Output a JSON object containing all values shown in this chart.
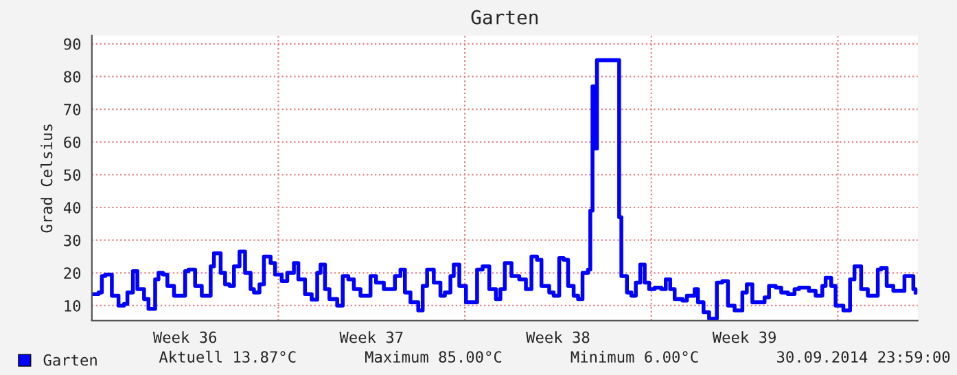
{
  "chart_data": {
    "type": "step",
    "title": "Garten",
    "ylabel": "Grad Celsius",
    "x": [
      "2014-08-31T00:00",
      "2014-08-31T06:00",
      "2014-08-31T09:00",
      "2014-08-31T12:00",
      "2014-08-31T18:00",
      "2014-09-01T00:00",
      "2014-09-01T05:00",
      "2014-09-01T08:00",
      "2014-09-01T13:00",
      "2014-09-01T17:00",
      "2014-09-01T23:00",
      "2014-09-02T03:00",
      "2014-09-02T09:00",
      "2014-09-02T12:00",
      "2014-09-02T16:00",
      "2014-09-02T20:00",
      "2014-09-03T02:00",
      "2014-09-03T06:00",
      "2014-09-03T12:00",
      "2014-09-03T15:00",
      "2014-09-03T21:00",
      "2014-09-04T03:00",
      "2014-09-04T06:00",
      "2014-09-04T11:00",
      "2014-09-04T14:00",
      "2014-09-04T20:00",
      "2014-09-05T00:00",
      "2014-09-05T04:00",
      "2014-09-05T08:00",
      "2014-09-05T13:00",
      "2014-09-05T18:00",
      "2014-09-05T23:00",
      "2014-09-06T02:00",
      "2014-09-06T07:00",
      "2014-09-06T11:00",
      "2014-09-06T17:00",
      "2014-09-06T21:00",
      "2014-09-07T03:00",
      "2014-09-07T08:00",
      "2014-09-07T14:00",
      "2014-09-07T18:00",
      "2014-09-08T00:00",
      "2014-09-08T06:00",
      "2014-09-08T11:00",
      "2014-09-08T14:00",
      "2014-09-08T18:00",
      "2014-09-08T22:00",
      "2014-09-09T05:00",
      "2014-09-09T10:00",
      "2014-09-09T15:00",
      "2014-09-09T20:00",
      "2014-09-10T02:00",
      "2014-09-10T07:00",
      "2014-09-10T11:00",
      "2014-09-10T16:00",
      "2014-09-10T23:00",
      "2014-09-11T05:00",
      "2014-09-11T09:00",
      "2014-09-11T14:00",
      "2014-09-11T18:00",
      "2014-09-11T23:00",
      "2014-09-12T06:00",
      "2014-09-12T10:00",
      "2014-09-12T14:00",
      "2014-09-12T20:00",
      "2014-09-13T02:00",
      "2014-09-13T06:00",
      "2014-09-13T11:00",
      "2014-09-13T14:00",
      "2014-09-13T19:00",
      "2014-09-14T01:00",
      "2014-09-14T05:00",
      "2014-09-14T11:00",
      "2014-09-14T16:00",
      "2014-09-14T22:00",
      "2014-09-15T04:00",
      "2014-09-15T08:00",
      "2014-09-15T12:00",
      "2014-09-15T18:00",
      "2014-09-16T01:00",
      "2014-09-16T07:00",
      "2014-09-16T12:00",
      "2014-09-16T17:00",
      "2014-09-16T21:00",
      "2014-09-17T04:00",
      "2014-09-17T08:00",
      "2014-09-17T13:00",
      "2014-09-17T17:00",
      "2014-09-17T21:00",
      "2014-09-18T02:00",
      "2014-09-18T06:00",
      "2014-09-18T10:00",
      "2014-09-18T15:00",
      "2014-09-18T17:00",
      "2014-09-18T19:00",
      "2014-09-18T21:00",
      "2014-09-18T23:00",
      "2014-09-19T18:00",
      "2014-09-19T19:00",
      "2014-09-19T21:00",
      "2014-09-20T02:00",
      "2014-09-20T06:00",
      "2014-09-20T10:00",
      "2014-09-20T14:00",
      "2014-09-20T18:00",
      "2014-09-20T22:00",
      "2014-09-21T03:00",
      "2014-09-21T09:00",
      "2014-09-21T13:00",
      "2014-09-21T17:00",
      "2014-09-21T21:00",
      "2014-09-22T04:00",
      "2014-09-22T08:00",
      "2014-09-22T15:00",
      "2014-09-22T18:00",
      "2014-09-22T23:00",
      "2014-09-23T04:00",
      "2014-09-23T11:00",
      "2014-09-23T16:00",
      "2014-09-23T21:00",
      "2014-09-24T03:00",
      "2014-09-24T10:00",
      "2014-09-24T14:00",
      "2014-09-24T19:00",
      "2014-09-25T00:00",
      "2014-09-25T06:00",
      "2014-09-25T10:00",
      "2014-09-25T16:00",
      "2014-09-25T21:00",
      "2014-09-26T03:00",
      "2014-09-26T09:00",
      "2014-09-26T13:00",
      "2014-09-26T22:00",
      "2014-09-27T04:00",
      "2014-09-27T10:00",
      "2014-09-27T13:00",
      "2014-09-27T18:00",
      "2014-09-27T22:00",
      "2014-09-28T05:00",
      "2014-09-28T08:00",
      "2014-09-28T11:00",
      "2014-09-28T15:00",
      "2014-09-28T21:00",
      "2014-09-29T03:00",
      "2014-09-29T07:00",
      "2014-09-29T12:00",
      "2014-09-29T15:00",
      "2014-09-29T20:00",
      "2014-09-30T02:00",
      "2014-09-30T06:00",
      "2014-09-30T12:00",
      "2014-09-30T16:00",
      "2014-09-30T20:00",
      "2014-09-30T22:00"
    ],
    "series": [
      {
        "name": "Garten",
        "color": "#0000ff",
        "values": [
          13.5,
          14,
          19,
          19.5,
          13,
          10,
          10.5,
          14,
          20.5,
          15,
          12,
          9,
          18,
          20,
          19.5,
          16,
          13,
          13,
          20.5,
          21,
          16,
          13,
          13,
          22,
          26,
          20,
          16.5,
          16,
          22,
          26.5,
          20,
          15,
          14,
          16.5,
          25,
          23,
          19.5,
          17.5,
          20,
          23,
          18,
          13.5,
          11.8,
          20,
          22.5,
          15,
          12,
          10,
          19,
          18,
          15,
          13,
          13,
          19,
          17,
          15,
          15,
          19,
          21,
          14,
          11,
          8.5,
          16,
          21,
          17,
          13,
          14,
          19,
          22.5,
          16,
          11,
          11,
          21,
          22,
          15,
          12,
          15,
          23,
          19,
          18,
          15,
          25,
          24,
          16,
          14,
          13,
          24.5,
          24,
          16,
          13,
          12,
          20,
          21,
          39,
          77,
          58,
          85,
          85,
          37,
          19,
          14,
          13,
          17,
          22.5,
          17,
          15,
          15.5,
          15,
          18,
          15,
          12,
          11.5,
          13,
          15,
          11,
          8,
          6,
          17,
          17.5,
          10,
          8.5,
          14,
          16.5,
          11,
          11,
          12.5,
          16,
          15.5,
          14,
          13.5,
          15,
          15.5,
          14.5,
          13,
          16,
          18.5,
          16,
          10,
          8.5,
          8.5,
          18,
          22,
          15,
          13,
          13,
          21,
          21.5,
          16,
          14.5,
          14.5,
          19,
          19,
          15,
          13.87
        ]
      }
    ],
    "xlim": [
      "2014-08-31",
      "2014-10-01"
    ],
    "xticks": [
      {
        "value": "2014-09-03T12:00",
        "label": "Week 36"
      },
      {
        "value": "2014-09-07",
        "label": null
      },
      {
        "value": "2014-09-10T12:00",
        "label": "Week 37"
      },
      {
        "value": "2014-09-14",
        "label": null
      },
      {
        "value": "2014-09-17T12:00",
        "label": "Week 38"
      },
      {
        "value": "2014-09-21",
        "label": null
      },
      {
        "value": "2014-09-24T12:00",
        "label": "Week 39"
      },
      {
        "value": "2014-09-28",
        "label": null
      }
    ],
    "ylim": [
      5.4,
      92.5
    ],
    "yticks": [
      10,
      20,
      30,
      40,
      50,
      60,
      70,
      80,
      90
    ],
    "grid": true,
    "legend": "bottom left",
    "line_style": "solid",
    "annotations": [
      "Aktuell 13.87°C",
      "Maximum 85.00°C",
      "Minimum 6.00°C",
      "30.09.2014 23:59:00"
    ]
  }
}
